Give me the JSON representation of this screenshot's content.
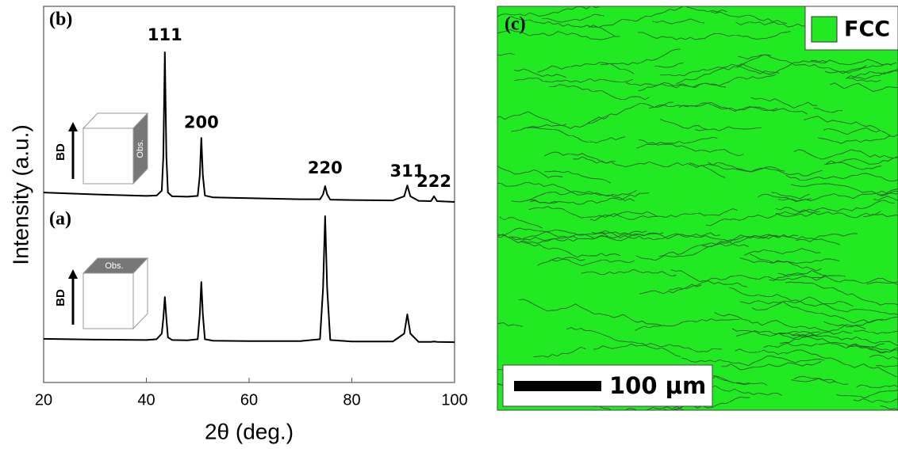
{
  "chart_data": {
    "type": "line",
    "xlabel": "2θ (deg.)",
    "ylabel": "Intensity (a.u.)",
    "xlim": [
      20,
      100
    ],
    "xticks": [
      20,
      40,
      60,
      80,
      100
    ],
    "ylim": [
      0,
      100
    ],
    "x": [
      20,
      30,
      40,
      42,
      43,
      43.3,
      43.6,
      43.9,
      44.2,
      45,
      48,
      50,
      50.4,
      50.7,
      51,
      51.4,
      53,
      60,
      70,
      73.8,
      74.4,
      74.8,
      75.2,
      75.8,
      80,
      88,
      90.2,
      90.8,
      91.4,
      93,
      95.4,
      96,
      96.6,
      100
    ],
    "series": [
      {
        "name": "(b)",
        "color": "#000000",
        "values": [
          50.5,
          50.0,
          49.6,
          49.7,
          51,
          60,
          87.8,
          60,
          50.5,
          49.5,
          49.4,
          49.6,
          55,
          65,
          55,
          49.7,
          49.2,
          49,
          48.7,
          48.7,
          50,
          52.2,
          50,
          48.6,
          48.5,
          48.4,
          49.5,
          52.4,
          49.5,
          48.3,
          48.2,
          49.5,
          48.2,
          48
        ]
      },
      {
        "name": "(a)",
        "color": "#000000",
        "values": [
          11.6,
          11.4,
          11.3,
          11.5,
          13,
          17,
          22.7,
          17,
          12,
          11.3,
          11.2,
          11.5,
          18,
          26.7,
          18,
          11.5,
          11.1,
          11,
          11,
          11.5,
          25,
          44.2,
          25,
          11.3,
          10.9,
          10.9,
          13,
          18.1,
          13,
          10.8,
          10.8,
          10.9,
          10.8,
          10.7
        ]
      }
    ],
    "annotations": [
      {
        "text": "111",
        "x": 43.6,
        "y": 92.2
      },
      {
        "text": "200",
        "x": 50.7,
        "y": 69
      },
      {
        "text": "220",
        "x": 74.8,
        "y": 56.8
      },
      {
        "text": "311",
        "x": 90.8,
        "y": 56
      },
      {
        "text": "222",
        "x": 96,
        "y": 53.3
      }
    ],
    "insets": [
      {
        "arrow": "BD",
        "face": "Obs."
      },
      {
        "arrow": "BD",
        "face": "Obs."
      }
    ]
  },
  "map": {
    "label": "(c)",
    "legend": "FCC",
    "color": "#22ea22",
    "scale_bar": "100 μm"
  }
}
